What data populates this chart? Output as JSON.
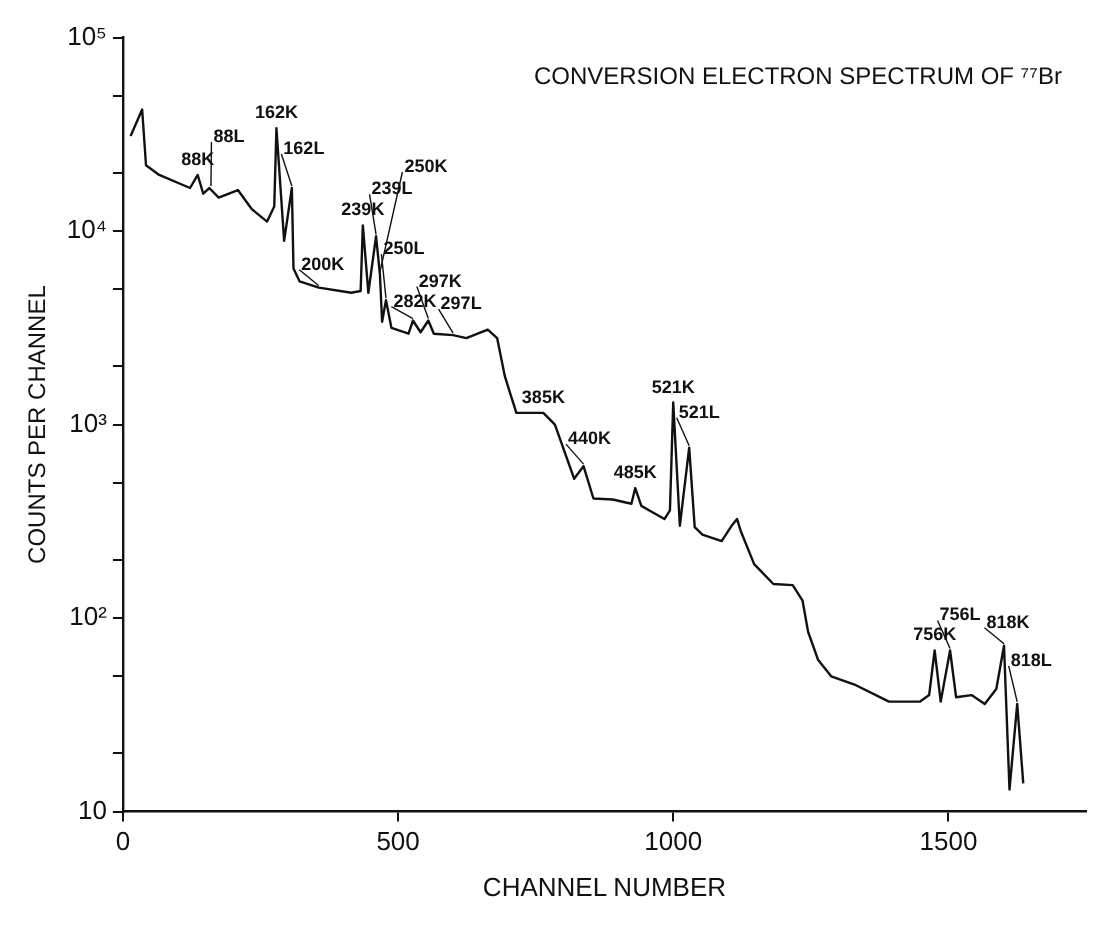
{
  "chart_data": {
    "type": "line",
    "title": "CONVERSION ELECTRON SPECTRUM OF ⁷⁷Br",
    "xlabel": "CHANNEL NUMBER",
    "ylabel": "COUNTS PER CHANNEL",
    "x": [
      14,
      35,
      42,
      66,
      122,
      136,
      146,
      157,
      174,
      209,
      234,
      262,
      275,
      279,
      293,
      307,
      310,
      321,
      356,
      415,
      432,
      436,
      446,
      460,
      467,
      471,
      478,
      488,
      519,
      527,
      541,
      555,
      565,
      600,
      624,
      663,
      680,
      694,
      704,
      715,
      764,
      785,
      820,
      837,
      855,
      890,
      924,
      931,
      942,
      984,
      994,
      1000,
      1012,
      1029,
      1039,
      1053,
      1088,
      1106,
      1116,
      1123,
      1147,
      1182,
      1217,
      1235,
      1245,
      1263,
      1287,
      1332,
      1392,
      1448,
      1465,
      1475,
      1486,
      1503,
      1514,
      1542,
      1566,
      1587,
      1601,
      1611,
      1625,
      1636
    ],
    "series": [
      {
        "color": "#111111",
        "values": [
          31000,
          42500,
          21900,
          19500,
          16700,
          19500,
          15600,
          16700,
          14900,
          16300,
          13000,
          11200,
          13400,
          34000,
          8900,
          16700,
          6400,
          5500,
          5100,
          4800,
          4900,
          10700,
          4800,
          9400,
          6000,
          3400,
          4400,
          3160,
          2950,
          3450,
          3000,
          3450,
          2950,
          2900,
          2800,
          3100,
          2800,
          1780,
          1440,
          1150,
          1150,
          1000,
          525,
          610,
          415,
          410,
          390,
          470,
          380,
          325,
          360,
          1300,
          300,
          760,
          295,
          270,
          250,
          300,
          325,
          280,
          190,
          150,
          148,
          123,
          85,
          61,
          50,
          45,
          37,
          37,
          40,
          68,
          37,
          68,
          39,
          40,
          36,
          43,
          72,
          13,
          36,
          14
        ]
      }
    ],
    "xlim": [
      0,
      1750
    ],
    "xticks": [
      0,
      500,
      1000,
      1500
    ],
    "ylim": [
      10,
      100000
    ],
    "yticks": [
      {
        "value": 10,
        "label": "10"
      },
      {
        "value": 20,
        "label": null
      },
      {
        "value": 50,
        "label": null
      },
      {
        "value": 100,
        "label": "10²"
      },
      {
        "value": 200,
        "label": null
      },
      {
        "value": 500,
        "label": null
      },
      {
        "value": 1000,
        "label": "10³"
      },
      {
        "value": 2000,
        "label": null
      },
      {
        "value": 5000,
        "label": null
      },
      {
        "value": 10000,
        "label": "10⁴"
      },
      {
        "value": 20000,
        "label": null
      },
      {
        "value": 50000,
        "label": null
      },
      {
        "value": 100000,
        "label": "10⁵"
      }
    ],
    "log": "y",
    "grid": false,
    "legend": false,
    "marker": "none",
    "line_style": "solid",
    "annotations": [
      {
        "text": "88K",
        "x": 136,
        "y": 19500
      },
      {
        "text": "88L",
        "x": 160,
        "y": 16700
      },
      {
        "text": "162K",
        "x": 279,
        "y": 34000
      },
      {
        "text": "162L",
        "x": 307,
        "y": 16700
      },
      {
        "text": "200K",
        "x": 356,
        "y": 5100
      },
      {
        "text": "239K",
        "x": 436,
        "y": 10700
      },
      {
        "text": "239L",
        "x": 460,
        "y": 9400
      },
      {
        "text": "250K",
        "x": 467,
        "y": 6000
      },
      {
        "text": "250L",
        "x": 478,
        "y": 4400
      },
      {
        "text": "282K",
        "x": 527,
        "y": 3450
      },
      {
        "text": "297K",
        "x": 555,
        "y": 3450
      },
      {
        "text": "297L",
        "x": 600,
        "y": 2900
      },
      {
        "text": "385K",
        "x": 764,
        "y": 1150
      },
      {
        "text": "440K",
        "x": 837,
        "y": 610
      },
      {
        "text": "485K",
        "x": 931,
        "y": 470
      },
      {
        "text": "521K",
        "x": 1000,
        "y": 1300
      },
      {
        "text": "521L",
        "x": 1029,
        "y": 760
      },
      {
        "text": "756K",
        "x": 1475,
        "y": 68
      },
      {
        "text": "756L",
        "x": 1503,
        "y": 68
      },
      {
        "text": "818K",
        "x": 1601,
        "y": 72
      },
      {
        "text": "818L",
        "x": 1625,
        "y": 36
      }
    ]
  }
}
